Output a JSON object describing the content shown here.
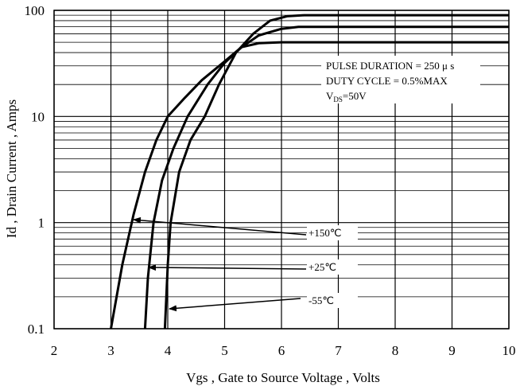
{
  "chart_data": {
    "type": "line",
    "xlabel": "Vgs , Gate to Source Voltage , Volts",
    "ylabel": "Id , Drain Current , Amps",
    "log_y": true,
    "grid": true,
    "color": "#000000",
    "xlim": [
      2,
      10
    ],
    "xticks": [
      2,
      3,
      4,
      5,
      6,
      7,
      8,
      9,
      10
    ],
    "ylim": [
      0.1,
      100
    ],
    "yticks": [
      0.1,
      1,
      10,
      100
    ],
    "series": [
      {
        "name": "+150℃",
        "x": [
          3.0,
          3.2,
          3.4,
          3.6,
          3.8,
          4.0,
          4.3,
          4.6,
          5.0,
          5.3,
          5.6,
          6.0,
          8.0,
          10.0
        ],
        "values": [
          0.1,
          0.4,
          1.2,
          3,
          6,
          10,
          15,
          22,
          33,
          45,
          49,
          50,
          50,
          50
        ]
      },
      {
        "name": "+25℃",
        "x": [
          3.6,
          3.65,
          3.75,
          3.9,
          4.1,
          4.35,
          4.7,
          5.0,
          5.3,
          5.6,
          6.0,
          6.3,
          8.0,
          10.0
        ],
        "values": [
          0.1,
          0.3,
          1,
          2.5,
          5,
          10,
          20,
          32,
          45,
          58,
          67,
          70,
          70,
          70
        ]
      },
      {
        "name": "-55℃",
        "x": [
          3.95,
          4.0,
          4.05,
          4.2,
          4.4,
          4.65,
          4.9,
          5.2,
          5.5,
          5.8,
          6.1,
          6.4,
          8.0,
          10.0
        ],
        "values": [
          0.1,
          0.4,
          1,
          3,
          6,
          10,
          20,
          40,
          60,
          80,
          88,
          90,
          90,
          90
        ]
      }
    ],
    "annotations": [
      "PULSE   DURATION = 250 μ s",
      "DUTY    CYCLE = 0.5%MAX"
    ],
    "condition": {
      "symbol": "V",
      "subscript": "DS",
      "text": "=50V"
    }
  }
}
